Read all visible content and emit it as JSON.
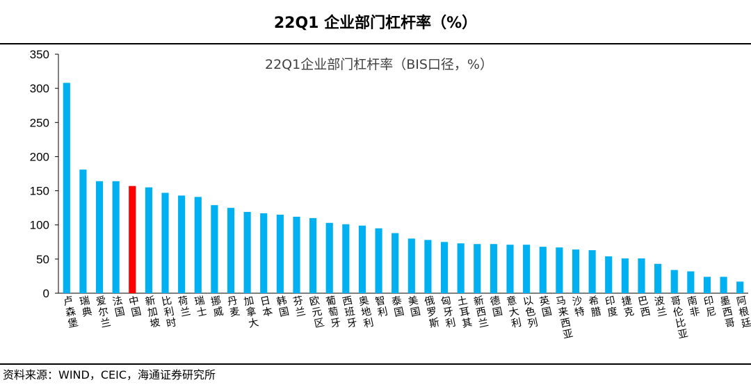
{
  "header": {
    "title": "22Q1 企业部门杠杆率（%）"
  },
  "footer": {
    "source": "资料来源：WIND，CEIC，海通证券研究所"
  },
  "colors": {
    "bar": "#00B0F0",
    "highlight": "#FF0000",
    "axis": "#000000"
  },
  "chart_data": {
    "type": "bar",
    "title": "22Q1企业部门杠杆率（BIS口径，%）",
    "xlabel": "",
    "ylabel": "",
    "ylim": [
      0,
      350
    ],
    "yticks": [
      0,
      50,
      100,
      150,
      200,
      250,
      300,
      350
    ],
    "grid": false,
    "highlight_category": "中国",
    "categories": [
      "卢森堡",
      "瑞典",
      "爱尔兰",
      "法国",
      "中国",
      "新加坡",
      "比利时",
      "荷兰",
      "瑞士",
      "挪威",
      "丹麦",
      "加拿大",
      "日本",
      "韩国",
      "芬兰",
      "欧元区",
      "葡萄牙",
      "西班牙",
      "奥地利",
      "智利",
      "泰国",
      "美国",
      "俄罗斯",
      "匈牙利",
      "土耳其",
      "新西兰",
      "德国",
      "意大利",
      "以色列",
      "英国",
      "马来西亚",
      "沙特",
      "希腊",
      "印度",
      "捷克",
      "巴西",
      "波兰",
      "哥伦比亚",
      "南非",
      "印尼",
      "墨西哥",
      "阿根廷"
    ],
    "values": [
      308,
      181,
      164,
      164,
      157,
      155,
      147,
      143,
      141,
      129,
      125,
      119,
      117,
      115,
      112,
      110,
      103,
      101,
      99,
      95,
      88,
      80,
      78,
      75,
      73,
      72,
      72,
      71,
      71,
      68,
      67,
      64,
      63,
      54,
      51,
      51,
      43,
      34,
      32,
      24,
      24,
      17
    ]
  }
}
